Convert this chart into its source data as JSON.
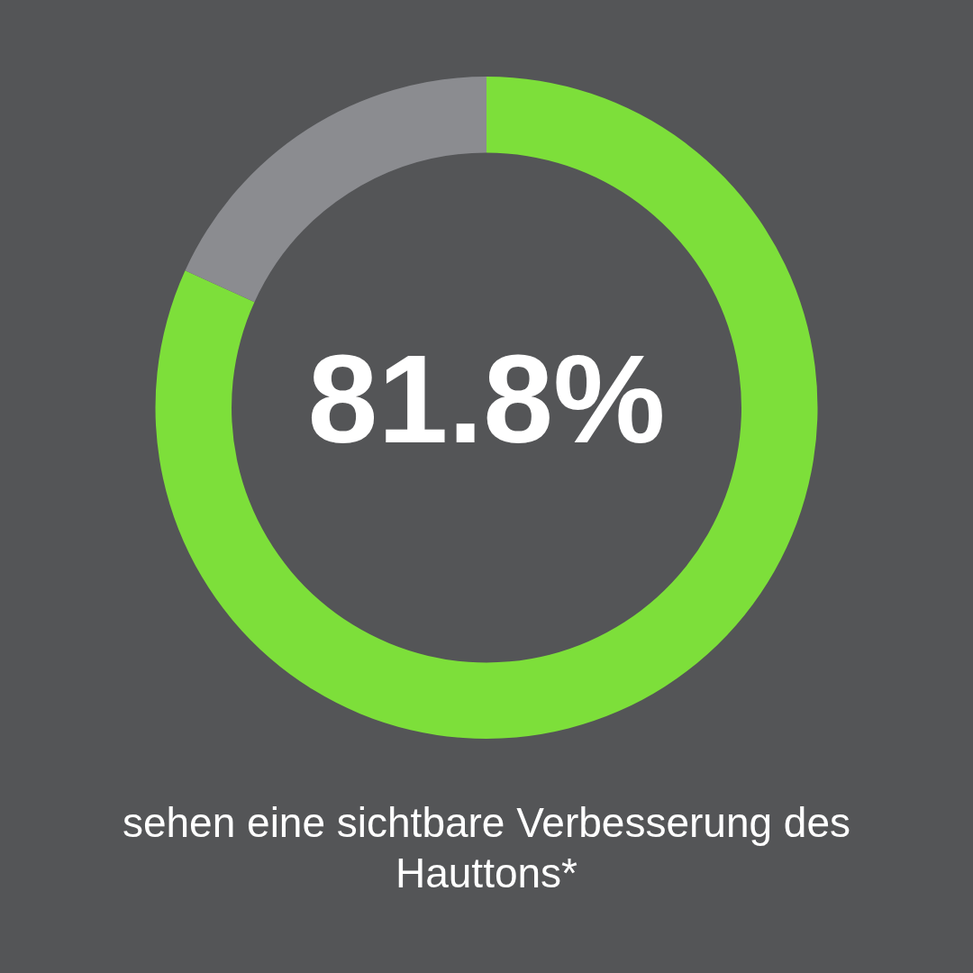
{
  "chart_data": {
    "type": "donut",
    "categories": [
      null,
      null
    ],
    "values": [
      81.8,
      18.2
    ],
    "colors": [
      "#7ddf3a",
      "#8b8c90"
    ],
    "value_labels": [
      "81.8%",
      null
    ],
    "annotations": [
      "sehen eine sichtbare Verbesserung des Hauttons*"
    ]
  }
}
